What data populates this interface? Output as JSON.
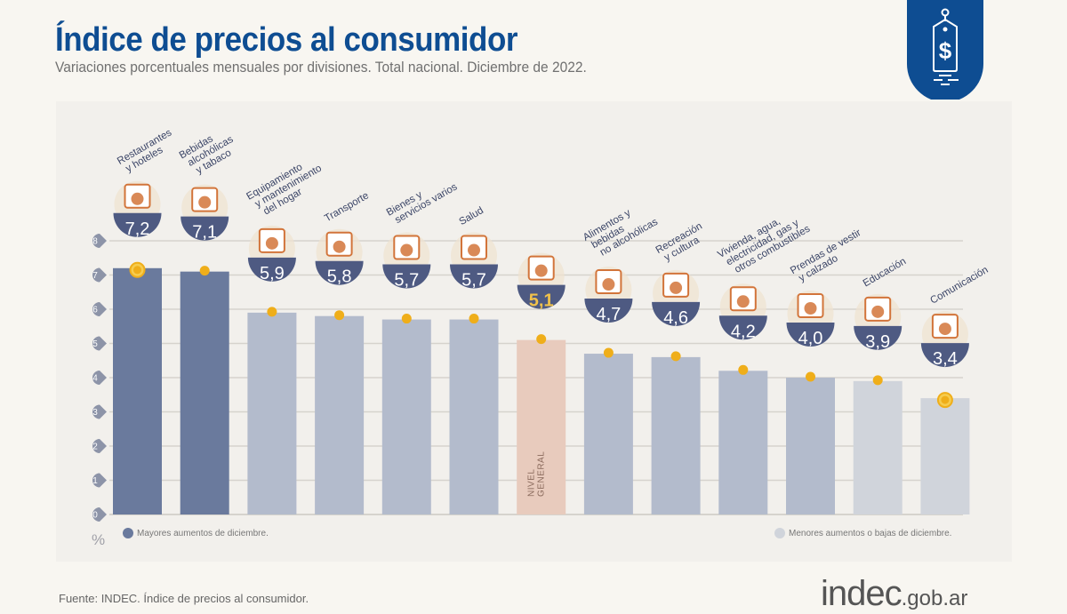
{
  "header": {
    "title": "Índice de precios al consumidor",
    "subtitle": "Variaciones porcentuales mensuales por divisiones. Total nacional. Diciembre de 2022."
  },
  "badge": {
    "icon": "price-tag-dollar-icon",
    "color": "#0e4d92"
  },
  "footer": {
    "source": "Fuente: INDEC. Índice de precios al consumidor.",
    "logo_main": "indec",
    "logo_suffix": ".gob.ar"
  },
  "legend": {
    "high": {
      "label": "Mayores aumentos de diciembre.",
      "color": "#6a7a9d"
    },
    "low": {
      "label": "Menores aumentos o bajas de diciembre.",
      "color": "#d0d4db"
    },
    "unit": "%"
  },
  "colors": {
    "dark": "#6a7a9d",
    "mid": "#b3bbcc",
    "light": "#d0d4db",
    "general": "#e8cbbd",
    "bubble": "#4e5a82",
    "marker": "#efae1a",
    "grid": "#d6d3cd",
    "general_value": "#f1c24a"
  },
  "chart_data": {
    "type": "bar",
    "title": "Índice de precios al consumidor",
    "subtitle": "Variaciones porcentuales mensuales por divisiones. Total nacional. Diciembre de 2022.",
    "ylabel": "%",
    "xlabel": "",
    "ylim": [
      0,
      8
    ],
    "yticks": [
      "0",
      "1",
      "2",
      "3",
      "4",
      "5",
      "6",
      "7",
      "8"
    ],
    "grid": true,
    "categories": [
      {
        "lines": [
          "Restaurantes",
          "y hoteles"
        ],
        "icon": "restaurant-icon",
        "value": 7.2,
        "label": "7,2",
        "group": "dark",
        "marker": "ring"
      },
      {
        "lines": [
          "Bebidas",
          "alcohólicas",
          "y tabaco"
        ],
        "icon": "wine-tobacco-icon",
        "value": 7.1,
        "label": "7,1",
        "group": "dark",
        "marker": "dot"
      },
      {
        "lines": [
          "Equipamiento",
          "y mantenimiento",
          "del hogar"
        ],
        "icon": "washing-machine-icon",
        "value": 5.9,
        "label": "5,9",
        "group": "mid",
        "marker": "dot"
      },
      {
        "lines": [
          "Transporte"
        ],
        "icon": "car-sube-icon",
        "value": 5.8,
        "label": "5,8",
        "group": "mid",
        "marker": "dot"
      },
      {
        "lines": [
          "Bienes y",
          "servicios varios"
        ],
        "icon": "scissors-comb-icon",
        "value": 5.7,
        "label": "5,7",
        "group": "mid",
        "marker": "dot"
      },
      {
        "lines": [
          "Salud"
        ],
        "icon": "first-aid-icon",
        "value": 5.7,
        "label": "5,7",
        "group": "mid",
        "marker": "dot"
      },
      {
        "lines": [],
        "icon": "shopping-bag-icon",
        "value": 5.1,
        "label": "5,1",
        "group": "general",
        "marker": "dot",
        "bar_text": [
          "NIVEL",
          "GENERAL"
        ]
      },
      {
        "lines": [
          "Alimentos y",
          "bebidas",
          "no alcohólicas"
        ],
        "icon": "food-icon",
        "value": 4.7,
        "label": "4,7",
        "group": "mid",
        "marker": "dot"
      },
      {
        "lines": [
          "Recreación",
          "y cultura"
        ],
        "icon": "beach-umbrella-icon",
        "value": 4.6,
        "label": "4,6",
        "group": "mid",
        "marker": "dot"
      },
      {
        "lines": [
          "Vivienda, agua,",
          "electricidad, gas y",
          "otros combustibles"
        ],
        "icon": "lightbulb-key-icon",
        "value": 4.2,
        "label": "4,2",
        "group": "mid",
        "marker": "dot"
      },
      {
        "lines": [
          "Prendas de vestir",
          "y calzado"
        ],
        "icon": "tshirt-shoe-icon",
        "value": 4.0,
        "label": "4,0",
        "group": "mid",
        "marker": "dot"
      },
      {
        "lines": [
          "Educación"
        ],
        "icon": "notebook-pencil-icon",
        "value": 3.9,
        "label": "3,9",
        "group": "light",
        "marker": "dot"
      },
      {
        "lines": [
          "Comunicación"
        ],
        "icon": "smartphone-icon",
        "value": 3.4,
        "label": "3,4",
        "group": "light",
        "marker": "ring"
      }
    ]
  }
}
